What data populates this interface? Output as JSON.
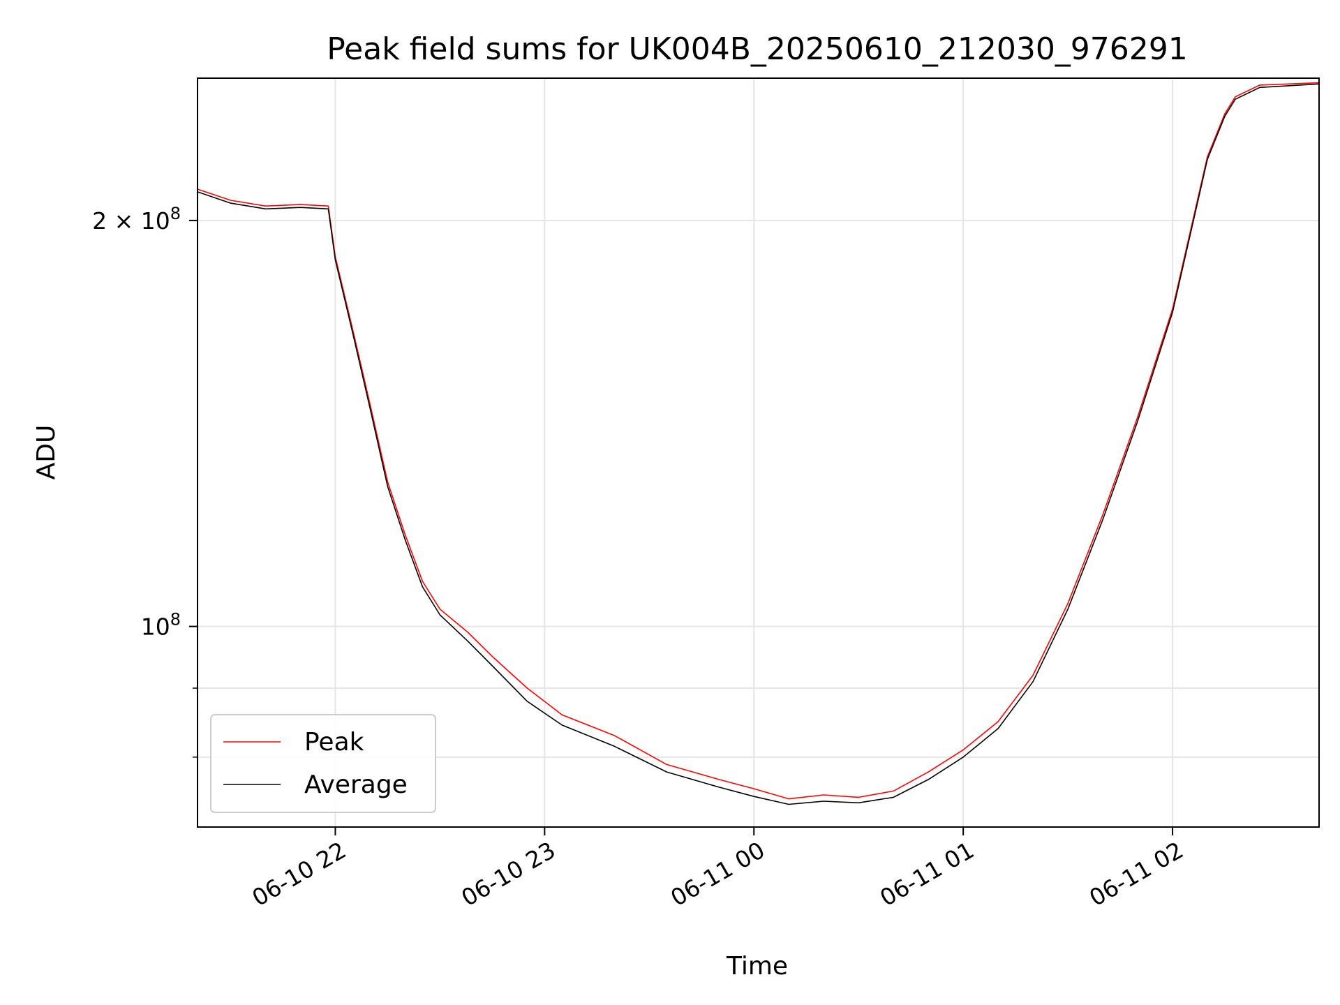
{
  "chart_data": {
    "type": "line",
    "title": "Peak field sums for UK004B_20250610_212030_976291",
    "xlabel": "Time",
    "ylabel": "ADU",
    "x_scale": "time",
    "y_scale": "log",
    "xlim": [
      "2025-06-10T21:20:30",
      "2025-06-11T02:42:00"
    ],
    "ylim": [
      71000000,
      255000000
    ],
    "grid": true,
    "legend_position": "lower-left",
    "x_ticks": [
      {
        "value": "2025-06-10T22:00:00",
        "label": "06-10 22"
      },
      {
        "value": "2025-06-10T23:00:00",
        "label": "06-10 23"
      },
      {
        "value": "2025-06-11T00:00:00",
        "label": "06-11 00"
      },
      {
        "value": "2025-06-11T01:00:00",
        "label": "06-11 01"
      },
      {
        "value": "2025-06-11T02:00:00",
        "label": "06-11 02"
      }
    ],
    "y_major_ticks": [
      {
        "value": 100000000,
        "base": "10",
        "exp": "8",
        "mult": ""
      },
      {
        "value": 200000000,
        "base": "10",
        "exp": "8",
        "mult": "2 × "
      }
    ],
    "y_minor_ticks": [
      80000000,
      90000000
    ],
    "series": [
      {
        "name": "Peak",
        "color": "#ff0000",
        "x": [
          "2025-06-10T21:20:30",
          "2025-06-10T21:30:00",
          "2025-06-10T21:40:00",
          "2025-06-10T21:50:00",
          "2025-06-10T21:58:00",
          "2025-06-10T22:00:00",
          "2025-06-10T22:05:00",
          "2025-06-10T22:10:00",
          "2025-06-10T22:15:00",
          "2025-06-10T22:20:00",
          "2025-06-10T22:25:00",
          "2025-06-10T22:30:00",
          "2025-06-10T22:38:00",
          "2025-06-10T22:45:00",
          "2025-06-10T22:55:00",
          "2025-06-10T23:05:00",
          "2025-06-10T23:20:00",
          "2025-06-10T23:35:00",
          "2025-06-10T23:50:00",
          "2025-06-11T00:00:00",
          "2025-06-11T00:10:00",
          "2025-06-11T00:20:00",
          "2025-06-11T00:30:00",
          "2025-06-11T00:40:00",
          "2025-06-11T00:50:00",
          "2025-06-11T01:00:00",
          "2025-06-11T01:10:00",
          "2025-06-11T01:20:00",
          "2025-06-11T01:30:00",
          "2025-06-11T01:40:00",
          "2025-06-11T01:50:00",
          "2025-06-11T02:00:00",
          "2025-06-11T02:10:00",
          "2025-06-11T02:15:00",
          "2025-06-11T02:18:00",
          "2025-06-11T02:25:00",
          "2025-06-11T02:42:00"
        ],
        "y": [
          211000000,
          207000000,
          205000000,
          205500000,
          205000000,
          188000000,
          166000000,
          146000000,
          128000000,
          117000000,
          108000000,
          103000000,
          99000000,
          95000000,
          90000000,
          86000000,
          83000000,
          79000000,
          77000000,
          75800000,
          74500000,
          75000000,
          74700000,
          75500000,
          78000000,
          81000000,
          85000000,
          92000000,
          104000000,
          121000000,
          143000000,
          172000000,
          223000000,
          240000000,
          247000000,
          252000000,
          253000000
        ]
      },
      {
        "name": "Average",
        "color": "#000000",
        "x": [
          "2025-06-10T21:20:30",
          "2025-06-10T21:30:00",
          "2025-06-10T21:40:00",
          "2025-06-10T21:50:00",
          "2025-06-10T21:58:00",
          "2025-06-10T22:00:00",
          "2025-06-10T22:05:00",
          "2025-06-10T22:10:00",
          "2025-06-10T22:15:00",
          "2025-06-10T22:20:00",
          "2025-06-10T22:25:00",
          "2025-06-10T22:30:00",
          "2025-06-10T22:38:00",
          "2025-06-10T22:45:00",
          "2025-06-10T22:55:00",
          "2025-06-10T23:05:00",
          "2025-06-10T23:20:00",
          "2025-06-10T23:35:00",
          "2025-06-10T23:50:00",
          "2025-06-11T00:00:00",
          "2025-06-11T00:10:00",
          "2025-06-11T00:20:00",
          "2025-06-11T00:30:00",
          "2025-06-11T00:40:00",
          "2025-06-11T00:50:00",
          "2025-06-11T01:00:00",
          "2025-06-11T01:10:00",
          "2025-06-11T01:20:00",
          "2025-06-11T01:30:00",
          "2025-06-11T01:40:00",
          "2025-06-11T01:50:00",
          "2025-06-11T02:00:00",
          "2025-06-11T02:10:00",
          "2025-06-11T02:15:00",
          "2025-06-11T02:18:00",
          "2025-06-11T02:25:00",
          "2025-06-11T02:42:00"
        ],
        "y": [
          210000000,
          206000000,
          204000000,
          204500000,
          204000000,
          187000000,
          165000000,
          145000000,
          127000000,
          116000000,
          107000000,
          102000000,
          97500000,
          93500000,
          88000000,
          84500000,
          81500000,
          78000000,
          76000000,
          74800000,
          73800000,
          74200000,
          74000000,
          74700000,
          77000000,
          80000000,
          84000000,
          91000000,
          103000000,
          120000000,
          142000000,
          171000000,
          222000000,
          239000000,
          246000000,
          251000000,
          252500000
        ]
      }
    ]
  }
}
